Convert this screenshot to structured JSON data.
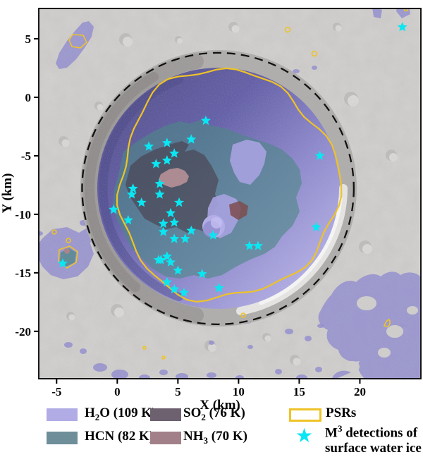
{
  "figure": {
    "x_axis_label": "X (km)",
    "y_axis_label": "Y (km)"
  },
  "legend": {
    "items": [
      {
        "pre": "H",
        "sub": "2",
        "post": "O (109 K)"
      },
      {
        "pre": "HCN (82 K)",
        "sub": "",
        "post": ""
      },
      {
        "pre": "SO",
        "sub": "2",
        "post": " (76 K)"
      },
      {
        "pre": "NH",
        "sub": "3",
        "post": " (70 K)"
      },
      {
        "label": "PSRs"
      },
      {
        "sup_pre": "M",
        "sup": "3",
        "line1_rest": " detections of",
        "line2": "surface water ice"
      }
    ]
  },
  "chart_data": {
    "type": "scatter",
    "title": "",
    "xlabel": "X (km)",
    "ylabel": "Y (km)",
    "xlim": [
      -6.47,
      25.03
    ],
    "ylim": [
      -24.05,
      7.59
    ],
    "x_ticks": [
      -5,
      0,
      5,
      10,
      15,
      20
    ],
    "y_ticks": [
      5,
      0,
      -5,
      -10,
      -15,
      -20
    ],
    "grid": false,
    "legend_position": "bottom",
    "psr_color": "#eec327",
    "rim_color": "#111111",
    "regions": [
      {
        "name": "H2O",
        "temp": "109 K",
        "legend_color": "#b1ace5",
        "map_color": "#8c87d1"
      },
      {
        "name": "HCN",
        "temp": "82 K",
        "legend_color": "#6e8f9a",
        "map_color": "#4d8786"
      },
      {
        "name": "SO2",
        "temp": "76 K",
        "legend_color": "#6d6170",
        "map_color": "#473642"
      },
      {
        "name": "NH3",
        "temp": "70 K",
        "legend_color": "#a2808a",
        "map_color": "#b18e95"
      }
    ],
    "annotations": {
      "crater_rim_dashed_circle": {
        "cx_km": 8.3,
        "cy_km": -7.8,
        "rx_km": 11.2,
        "ry_km": 11.6
      },
      "psr_main_contour": {
        "cx_km": 9.0,
        "cy_km": -7.5,
        "rx_km": 9.0,
        "ry_km": 9.8
      }
    },
    "series": [
      {
        "name": "M3 detections of surface water ice",
        "marker": "star",
        "color": "#0ae6f2",
        "points": [
          [
            7.3,
            -2.0
          ],
          [
            6.1,
            -3.6
          ],
          [
            4.1,
            -3.9
          ],
          [
            2.6,
            -4.2
          ],
          [
            4.7,
            -4.8
          ],
          [
            4.1,
            -5.4
          ],
          [
            3.2,
            -5.7
          ],
          [
            3.5,
            -7.4
          ],
          [
            1.3,
            -7.8
          ],
          [
            1.2,
            -8.3
          ],
          [
            3.5,
            -8.3
          ],
          [
            2.0,
            -9.0
          ],
          [
            5.1,
            -9.0
          ],
          [
            -0.3,
            -9.6
          ],
          [
            4.4,
            -9.9
          ],
          [
            0.9,
            -10.5
          ],
          [
            4.7,
            -10.7
          ],
          [
            3.8,
            -10.8
          ],
          [
            6.1,
            -11.4
          ],
          [
            3.8,
            -11.5
          ],
          [
            7.9,
            -11.8
          ],
          [
            4.7,
            -12.1
          ],
          [
            5.6,
            -12.1
          ],
          [
            10.9,
            -12.7
          ],
          [
            11.6,
            -12.7
          ],
          [
            4.1,
            -13.6
          ],
          [
            3.4,
            -13.9
          ],
          [
            3.6,
            -13.9
          ],
          [
            4.4,
            -14.1
          ],
          [
            5.0,
            -14.8
          ],
          [
            7.0,
            -15.1
          ],
          [
            4.1,
            -15.8
          ],
          [
            4.7,
            -16.4
          ],
          [
            5.5,
            -16.7
          ],
          [
            8.4,
            -16.3
          ],
          [
            16.7,
            -5.0
          ],
          [
            16.4,
            -11.1
          ],
          [
            -4.5,
            -14.2
          ],
          [
            23.5,
            6.0
          ]
        ]
      }
    ]
  }
}
